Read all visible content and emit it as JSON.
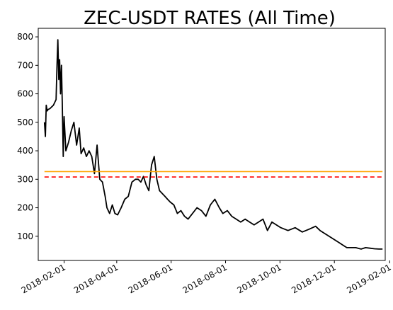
{
  "chart_data": {
    "type": "line",
    "title": "ZEC-USDT RATES (All Time)",
    "xlabel": "",
    "ylabel": "",
    "xlim": [
      "2018-01-03",
      "2019-01-27"
    ],
    "ylim": [
      15,
      830
    ],
    "x_ticks": [
      "2018-02-01",
      "2018-04-01",
      "2018-06-01",
      "2018-08-01",
      "2018-10-01",
      "2018-12-01",
      "2019-02-01"
    ],
    "y_ticks": [
      100,
      200,
      300,
      400,
      500,
      600,
      700,
      800
    ],
    "grid": false,
    "legend": "none",
    "series": [
      {
        "color": "#000000",
        "style": "solid",
        "x": [
          "2018-01-10",
          "2018-01-11",
          "2018-01-12",
          "2018-01-13",
          "2018-01-14",
          "2018-01-16",
          "2018-01-20",
          "2018-01-23",
          "2018-01-24",
          "2018-01-25",
          "2018-01-26",
          "2018-01-27",
          "2018-01-28",
          "2018-01-29",
          "2018-01-30",
          "2018-01-31",
          "2018-02-01",
          "2018-02-03",
          "2018-02-06",
          "2018-02-09",
          "2018-02-12",
          "2018-02-15",
          "2018-02-18",
          "2018-02-20",
          "2018-02-23",
          "2018-02-26",
          "2018-03-01",
          "2018-03-04",
          "2018-03-07",
          "2018-03-10",
          "2018-03-13",
          "2018-03-16",
          "2018-03-19",
          "2018-03-21",
          "2018-03-24",
          "2018-03-27",
          "2018-03-30",
          "2018-04-02",
          "2018-04-06",
          "2018-04-10",
          "2018-04-14",
          "2018-04-18",
          "2018-04-22",
          "2018-04-25",
          "2018-04-28",
          "2018-05-01",
          "2018-05-04",
          "2018-05-07",
          "2018-05-10",
          "2018-05-13",
          "2018-05-16",
          "2018-05-19",
          "2018-05-22",
          "2018-05-25",
          "2018-05-28",
          "2018-05-31",
          "2018-06-04",
          "2018-06-08",
          "2018-06-12",
          "2018-06-16",
          "2018-06-20",
          "2018-06-25",
          "2018-06-30",
          "2018-07-05",
          "2018-07-10",
          "2018-07-15",
          "2018-07-20",
          "2018-07-25",
          "2018-07-29",
          "2018-08-03",
          "2018-08-08",
          "2018-08-13",
          "2018-08-18",
          "2018-08-23",
          "2018-08-28",
          "2018-09-02",
          "2018-09-07",
          "2018-09-12",
          "2018-09-17",
          "2018-09-22",
          "2018-09-27",
          "2018-10-02",
          "2018-10-10",
          "2018-10-18",
          "2018-10-26",
          "2018-11-03",
          "2018-11-10",
          "2018-11-15",
          "2018-11-20",
          "2018-11-25",
          "2018-11-30",
          "2018-12-05",
          "2018-12-10",
          "2018-12-15",
          "2018-12-20",
          "2018-12-25",
          "2018-12-31",
          "2019-01-05",
          "2019-01-10",
          "2019-01-15",
          "2019-01-20",
          "2019-01-24"
        ],
        "values": [
          500,
          450,
          560,
          540,
          545,
          548,
          560,
          580,
          700,
          790,
          650,
          720,
          600,
          700,
          560,
          380,
          520,
          400,
          430,
          470,
          500,
          420,
          480,
          390,
          410,
          380,
          400,
          380,
          320,
          420,
          300,
          290,
          240,
          200,
          180,
          210,
          180,
          175,
          200,
          230,
          240,
          290,
          300,
          300,
          290,
          310,
          280,
          260,
          350,
          380,
          300,
          260,
          250,
          240,
          230,
          220,
          210,
          180,
          190,
          170,
          160,
          180,
          200,
          190,
          170,
          210,
          230,
          200,
          180,
          190,
          170,
          160,
          150,
          160,
          150,
          140,
          150,
          160,
          120,
          150,
          140,
          130,
          120,
          130,
          115,
          125,
          135,
          120,
          110,
          100,
          90,
          80,
          70,
          60,
          60,
          60,
          55,
          60,
          58,
          56,
          55,
          55
        ]
      },
      {
        "color": "#FFA500",
        "style": "solid",
        "x": [
          "2018-01-10",
          "2019-01-24"
        ],
        "values": [
          327,
          327
        ]
      },
      {
        "color": "#FF0000",
        "style": "dashed",
        "x": [
          "2018-01-10",
          "2019-01-24"
        ],
        "values": [
          308,
          308
        ]
      }
    ]
  }
}
